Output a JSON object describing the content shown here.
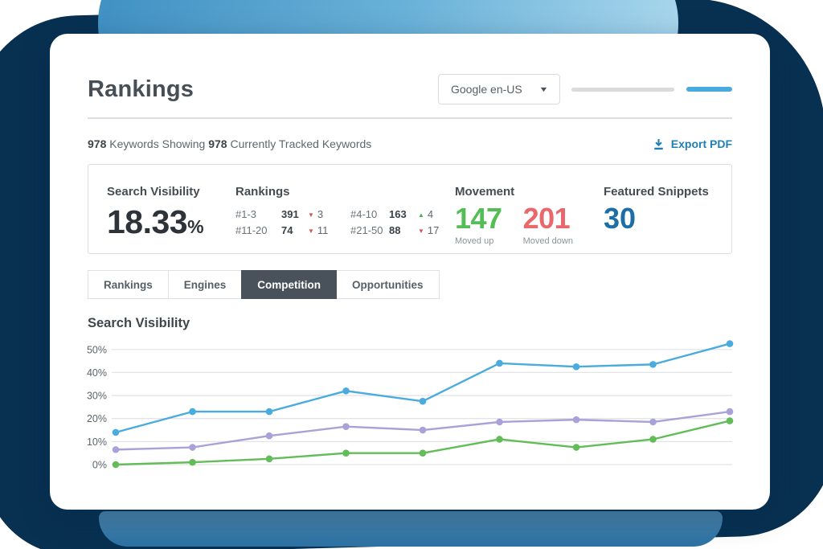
{
  "header": {
    "title": "Rankings",
    "engine_selector": {
      "value": "Google en-US"
    }
  },
  "summary": {
    "count_showing": "978",
    "text_showing": " Keywords Showing ",
    "count_tracked": "978",
    "text_tracked": " Currently Tracked Keywords",
    "export_label": "Export PDF"
  },
  "stats": {
    "search_visibility": {
      "label": "Search Visibility",
      "value": "18.33",
      "unit": "%"
    },
    "rankings": {
      "label": "Rankings",
      "rows": [
        {
          "range": "#1-3",
          "count": "391",
          "dir": "down",
          "delta": "3"
        },
        {
          "range": "#4-10",
          "count": "163",
          "dir": "up",
          "delta": "4"
        },
        {
          "range": "#11-20",
          "count": "74",
          "dir": "down",
          "delta": "11"
        },
        {
          "range": "#21-50",
          "count": "88",
          "dir": "down",
          "delta": "17"
        }
      ]
    },
    "movement": {
      "label": "Movement",
      "up": {
        "value": "147",
        "caption": "Moved up"
      },
      "down": {
        "value": "201",
        "caption": "Moved down"
      }
    },
    "featured_snippets": {
      "label": "Featured Snippets",
      "value": "30"
    }
  },
  "tabs": [
    {
      "label": "Rankings",
      "active": false
    },
    {
      "label": "Engines",
      "active": false
    },
    {
      "label": "Competition",
      "active": true
    },
    {
      "label": "Opportunities",
      "active": false
    }
  ],
  "chart_data": {
    "type": "line",
    "title": "Search Visibility",
    "xlabel": "",
    "ylabel": "",
    "x": [
      1,
      2,
      3,
      4,
      5,
      6,
      7,
      8,
      9
    ],
    "x_tick_labels": [],
    "yticks": [
      50,
      40,
      30,
      20,
      10,
      0
    ],
    "ytick_labels": [
      "50%",
      "40%",
      "30%",
      "20%",
      "10%",
      "0%"
    ],
    "ylim": [
      0,
      55
    ],
    "grid": true,
    "legend": "none",
    "series": [
      {
        "name": "series-blue",
        "color": "#4aabde",
        "values": [
          14,
          23,
          23,
          32,
          27.5,
          44,
          42.5,
          43.5,
          52.5
        ]
      },
      {
        "name": "series-purple",
        "color": "#a9a2d8",
        "values": [
          6.5,
          7.5,
          12.5,
          16.5,
          15,
          18.5,
          19.5,
          18.5,
          23
        ]
      },
      {
        "name": "series-green",
        "color": "#62bd59",
        "values": [
          0,
          1,
          2.5,
          5,
          5,
          11,
          7.5,
          11,
          19
        ]
      }
    ]
  },
  "colors": {
    "background_navy": "#083051",
    "top_shape_gradient": [
      "#4292c4",
      "#a6d5ec"
    ],
    "bottom_shape_gradient": [
      "#4d88b0",
      "#2e73a4"
    ],
    "accent_link_blue": "#2080b6",
    "active_tab": "#49525a",
    "positive_green": "#55bd55",
    "negative_red": "#e8686c",
    "snippets_blue": "#1d6ea6",
    "progress_blue": "#49aade"
  }
}
